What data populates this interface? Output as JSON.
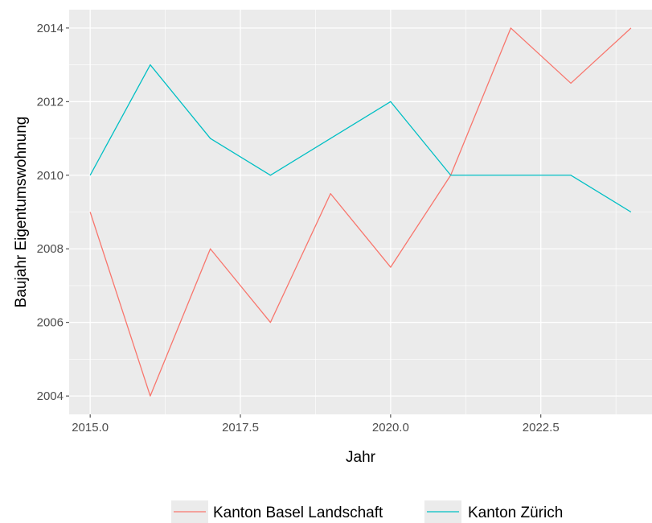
{
  "chart_data": {
    "type": "line",
    "xlabel": "Jahr",
    "ylabel": "Baujahr Eigentumswohnung",
    "xlim": [
      2014.65,
      2024.35
    ],
    "ylim": [
      2003.5,
      2014.5
    ],
    "x_ticks": [
      2015.0,
      2017.5,
      2020.0,
      2022.5
    ],
    "x_tick_labels": [
      "2015.0",
      "2017.5",
      "2020.0",
      "2022.5"
    ],
    "y_ticks": [
      2004,
      2006,
      2008,
      2010,
      2012,
      2014
    ],
    "y_tick_labels": [
      "2004",
      "2006",
      "2008",
      "2010",
      "2012",
      "2014"
    ],
    "grid": true,
    "legend_position": "bottom",
    "x": [
      2015,
      2016,
      2017,
      2018,
      2019,
      2020,
      2021,
      2022,
      2023,
      2024
    ],
    "series": [
      {
        "name": "Kanton Basel Landschaft",
        "color": "#F8766D",
        "values": [
          2009,
          2004,
          2008,
          2006,
          2009.5,
          2007.5,
          2010,
          2014,
          2012.5,
          2014
        ]
      },
      {
        "name": "Kanton Zürich",
        "color": "#00BFC4",
        "values": [
          2010,
          2013,
          2011,
          2010,
          2011,
          2012,
          2010,
          2010,
          2010,
          2009
        ]
      }
    ],
    "panel_background": "#EBEBEB",
    "grid_color": "#FFFFFF"
  }
}
